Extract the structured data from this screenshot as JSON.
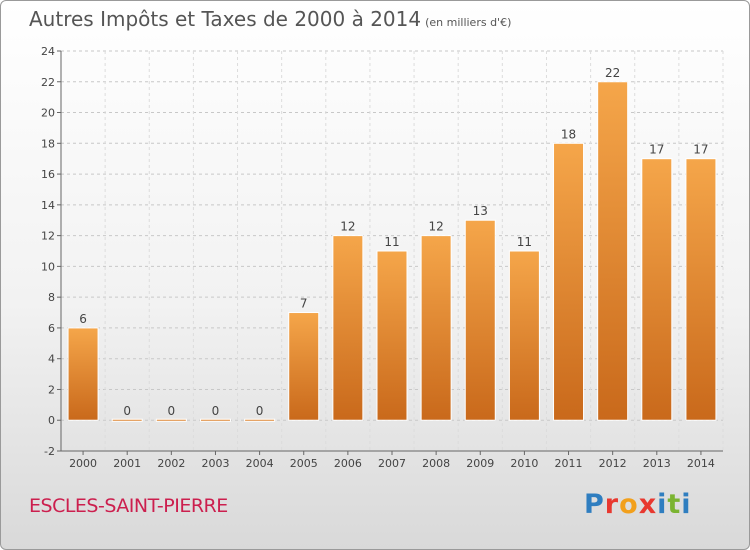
{
  "header": {
    "title": "Autres Impôts et Taxes de 2000 à 2014",
    "unit": "(en milliers d'€)"
  },
  "footer": {
    "town": "ESCLES-SAINT-PIERRE",
    "logo": "Proxiti"
  },
  "colors": {
    "bar_light": "#f5a64a",
    "bar_dark": "#c9691b",
    "town": "#cc1f4e"
  },
  "chart_data": {
    "type": "bar",
    "title": "Autres Impôts et Taxes de 2000 à 2014",
    "subtitle": "(en milliers d'€)",
    "categories": [
      "2000",
      "2001",
      "2002",
      "2003",
      "2004",
      "2005",
      "2006",
      "2007",
      "2008",
      "2009",
      "2010",
      "2011",
      "2012",
      "2013",
      "2014"
    ],
    "values": [
      6,
      0,
      0,
      0,
      0,
      7,
      12,
      11,
      12,
      13,
      11,
      18,
      22,
      17,
      17
    ],
    "data_labels": [
      "6",
      "0",
      "0",
      "0",
      "0",
      "7",
      "12",
      "11",
      "12",
      "13",
      "11",
      "18",
      "22",
      "17",
      "17"
    ],
    "ylim": [
      -2,
      24
    ],
    "yticks": [
      -2,
      0,
      2,
      4,
      6,
      8,
      10,
      12,
      14,
      16,
      18,
      20,
      22,
      24
    ],
    "grid": "horizontal dashed",
    "legend": "none"
  }
}
